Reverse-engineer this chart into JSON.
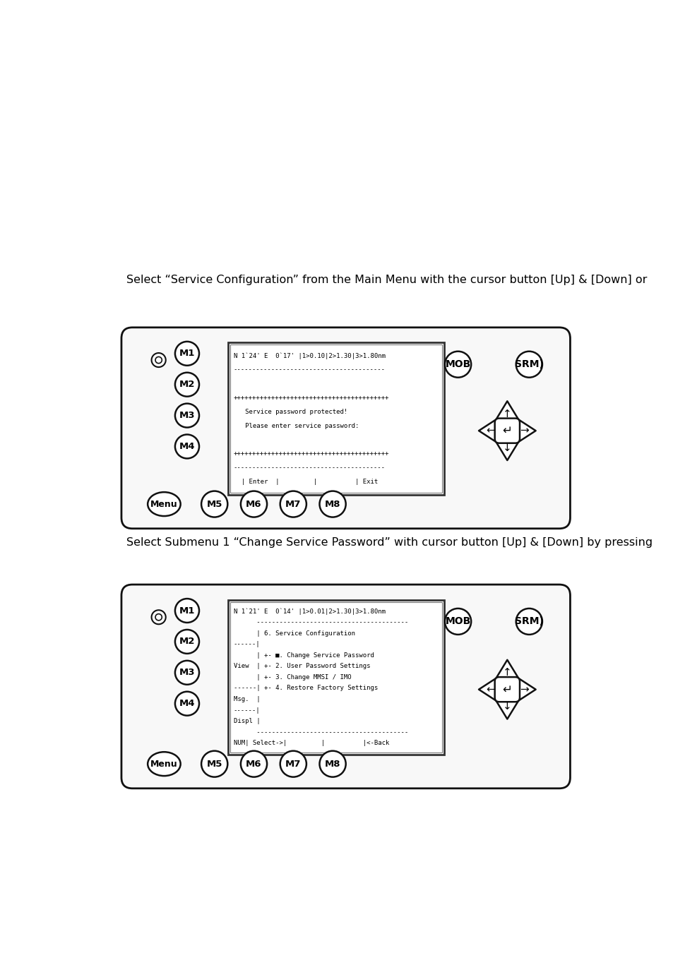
{
  "bg_color": "#ffffff",
  "text_color": "#000000",
  "text1": "Select “Service Configuration” from the Main Menu with the cursor button [Up] & [Down] or",
  "text2": "Select Submenu 1 “Change Service Password” with cursor button [Up] & [Down] by pressing",
  "device1_screen_lines": [
    "N 1`24' E  0`17' |1>0.10|2>1.30|3>1.80nm",
    "----------------------------------------",
    "",
    "+++++++++++++++++++++++++++++++++++++++++",
    "   Service password protected!",
    "   Please enter service password:",
    "",
    "+++++++++++++++++++++++++++++++++++++++++",
    "----------------------------------------",
    "  | Enter  |         |          | Exit"
  ],
  "device2_screen_lines": [
    "N 1`21' E  0`14' |1>0.01|2>1.30|3>1.80nm",
    "      ----------------------------------------",
    "      | 6. Service Configuration",
    "------|",
    "      | +- ■. Change Service Password",
    "View  | +- 2. User Password Settings",
    "      | +- 3. Change MMSI / IMO",
    "------| +- 4. Restore Factory Settings",
    "Msg.  |",
    "------|",
    "Displ |",
    "      ----------------------------------------",
    "NUM| Select->|         |          |<-Back"
  ],
  "panel_bg": "#f8f8f8",
  "panel_edge": "#111111",
  "screen_bg": "#ffffff",
  "screen_edge": "#111111",
  "btn_bg": "#ffffff",
  "btn_edge": "#111111"
}
